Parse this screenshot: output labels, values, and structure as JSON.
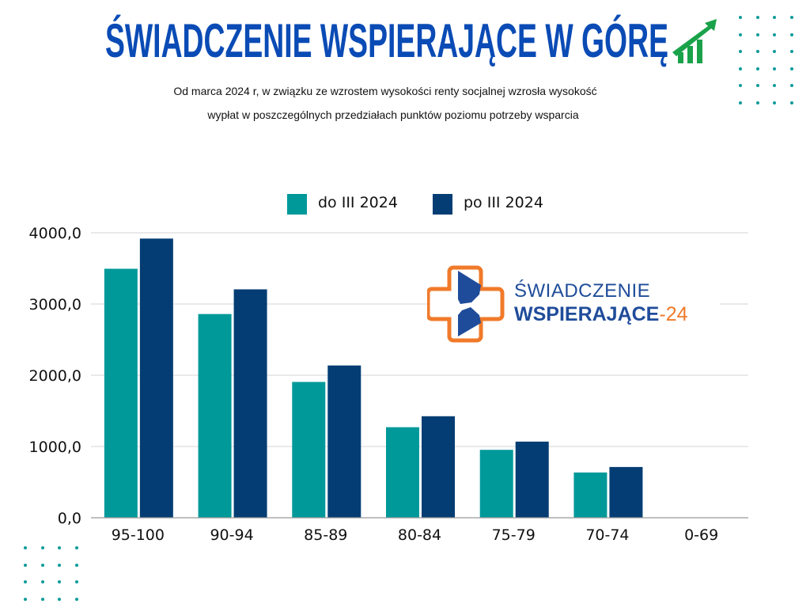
{
  "header": {
    "title": "ŚWIADCZENIE WSPIERAJĄCE W GÓRĘ",
    "title_icon": "trend-up-arrow-icon",
    "subtitle_line1": "Od marca 2024 r, w związku ze wzrostem wysokości renty socjalnej wzrosła wysokość",
    "subtitle_line2": "wypłat w poszczególnych przedziałach punktów poziomu potrzeby wsparcia"
  },
  "logo": {
    "line1": "ŚWIADCZENIE",
    "line2": "WSPIERAJĄCE",
    "line2_suffix": "-24"
  },
  "colors": {
    "title": "#0a4bb5",
    "series1": "#00999a",
    "series2": "#033d73",
    "arrow": "#1aa24a",
    "logo_orange": "#f07a2a",
    "logo_blue": "#1f4c9a"
  },
  "chart_data": {
    "type": "bar",
    "categories": [
      "95-100",
      "90-94",
      "85-89",
      "80-84",
      "75-79",
      "70-74",
      "0-69"
    ],
    "series": [
      {
        "name": "do III 2024",
        "values": [
          3494.6,
          2859.2,
          1906.1,
          1270.8,
          953.1,
          635.4,
          0
        ]
      },
      {
        "name": "po III 2024",
        "values": [
          3918.1,
          3205.7,
          2137.2,
          1424.8,
          1068.6,
          712.4,
          0
        ]
      }
    ],
    "ylim": [
      0,
      4000
    ],
    "yticks": [
      "0,0",
      "1000,0",
      "2000,0",
      "3000,0",
      "4000,0"
    ],
    "grid": true,
    "legend": "top-center"
  }
}
